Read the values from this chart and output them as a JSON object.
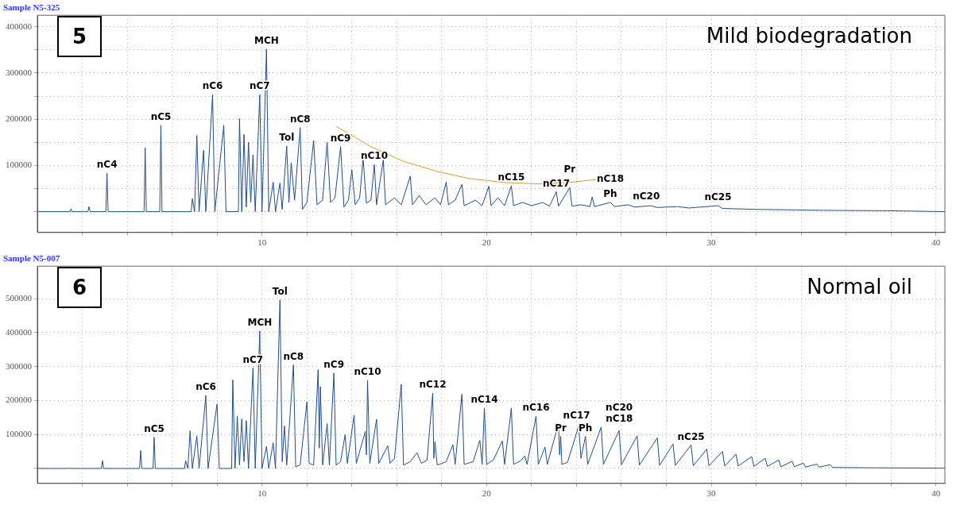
{
  "chart_data": [
    {
      "type": "line",
      "title": "Sample N5-325",
      "xlim": [
        0,
        40.4
      ],
      "ylim": [
        -45000,
        425000
      ],
      "xticks": [
        {
          "value": 2,
          "label": null
        },
        {
          "value": 4,
          "label": null
        },
        {
          "value": 6,
          "label": null
        },
        {
          "value": 8,
          "label": null
        },
        10,
        {
          "value": 12,
          "label": null
        },
        {
          "value": 14,
          "label": null
        },
        {
          "value": 16,
          "label": null
        },
        {
          "value": 18,
          "label": null
        },
        20,
        {
          "value": 22,
          "label": null
        },
        {
          "value": 24,
          "label": null
        },
        {
          "value": 26,
          "label": null
        },
        {
          "value": 28,
          "label": null
        },
        30,
        {
          "value": 32,
          "label": null
        },
        {
          "value": 34,
          "label": null
        },
        {
          "value": 36,
          "label": null
        },
        {
          "value": 38,
          "label": null
        },
        40
      ],
      "yticks": [
        {
          "value": 0,
          "label": null
        },
        {
          "value": 50000,
          "label": null
        },
        100000,
        {
          "value": 150000,
          "label": null
        },
        200000,
        {
          "value": 250000,
          "label": null
        },
        300000,
        {
          "value": 350000,
          "label": null
        },
        400000
      ],
      "grid": true,
      "legend": false,
      "marker": "none",
      "series": [
        {
          "color": "#1f4e8c",
          "x": [
            0,
            1.45,
            1.5,
            1.55,
            2.25,
            2.3,
            2.35,
            3.05,
            3.1,
            3.15,
            4.75,
            4.8,
            4.85,
            5.45,
            5.5,
            5.55,
            6.85,
            6.9,
            7.0,
            7.1,
            7.2,
            7.4,
            7.5,
            7.8,
            7.9,
            8.3,
            8.4,
            8.95,
            9.0,
            9.1,
            9.2,
            9.3,
            9.4,
            9.5,
            9.6,
            9.7,
            9.9,
            10.0,
            10.2,
            10.3,
            10.5,
            10.6,
            10.8,
            10.9,
            11.1,
            11.2,
            11.3,
            11.45,
            11.7,
            11.8,
            12.0,
            12.3,
            12.45,
            12.7,
            12.9,
            13.05,
            13.25,
            13.5,
            13.65,
            13.85,
            14.0,
            14.15,
            14.35,
            14.5,
            14.65,
            14.85,
            15.0,
            15.1,
            15.4,
            15.5,
            15.9,
            16.2,
            16.6,
            16.7,
            17.0,
            17.3,
            17.7,
            17.95,
            18.2,
            18.3,
            18.6,
            18.9,
            19.0,
            19.5,
            19.8,
            20.1,
            20.2,
            20.5,
            20.8,
            21.1,
            21.2,
            21.6,
            22.0,
            22.5,
            22.8,
            23.1,
            23.2,
            23.7,
            23.8,
            24.2,
            24.6,
            24.7,
            24.8,
            25.5,
            25.7,
            26.3,
            26.6,
            27.3,
            27.6,
            28.5,
            29.0,
            30.3,
            30.5,
            32,
            35,
            38,
            40.4
          ],
          "values": [
            0,
            0,
            6000,
            0,
            0,
            11000,
            0,
            0,
            83000,
            0,
            0,
            138000,
            0,
            0,
            187000,
            0,
            0,
            28000,
            0,
            165000,
            0,
            133000,
            0,
            253000,
            0,
            187000,
            0,
            0,
            202000,
            0,
            167000,
            10000,
            150000,
            20000,
            123000,
            0,
            253000,
            0,
            352000,
            0,
            64000,
            0,
            62000,
            5000,
            142000,
            20000,
            106000,
            25000,
            182000,
            5000,
            20000,
            154000,
            15000,
            25000,
            150000,
            20000,
            30000,
            141000,
            10000,
            25000,
            91000,
            15000,
            30000,
            115000,
            18000,
            25000,
            102000,
            15000,
            112000,
            15000,
            30000,
            15000,
            77000,
            15000,
            35000,
            15000,
            30000,
            15000,
            64000,
            15000,
            25000,
            59000,
            13000,
            25000,
            13000,
            55000,
            13000,
            30000,
            13000,
            56000,
            13000,
            20000,
            13000,
            20000,
            12000,
            43000,
            12000,
            52000,
            12000,
            15000,
            11000,
            32000,
            11000,
            20000,
            11000,
            15000,
            10000,
            13000,
            9000,
            11000,
            8000,
            13000,
            7000,
            5000,
            3000,
            2000,
            0
          ]
        },
        {
          "type": "line",
          "color": "#d4a020",
          "x": [
            13.3,
            14.8,
            16.3,
            17.8,
            19.2,
            20.8,
            22.3,
            23.6,
            25.0
          ],
          "values": [
            185000,
            142000,
            109000,
            87000,
            72000,
            63000,
            60000,
            63000,
            70000
          ]
        }
      ],
      "annotations": [
        "5",
        "Mild biodegradation",
        {
          "text": "nC4",
          "x": 3.1,
          "y": 83000
        },
        {
          "text": "nC5",
          "x": 5.5,
          "y": 187000
        },
        {
          "text": "nC6",
          "x": 7.8,
          "y": 253000
        },
        {
          "text": "nC7",
          "x": 9.9,
          "y": 253000
        },
        {
          "text": "MCH",
          "x": 10.2,
          "y": 352000
        },
        {
          "text": "Tol",
          "x": 11.1,
          "y": 142000
        },
        {
          "text": "nC8",
          "x": 11.7,
          "y": 182000
        },
        {
          "text": "nC9",
          "x": 13.5,
          "y": 141000
        },
        {
          "text": "nC10",
          "x": 15.0,
          "y": 102000
        },
        {
          "text": "nC15",
          "x": 21.1,
          "y": 56000
        },
        {
          "text": "nC17",
          "x": 23.1,
          "y": 43000
        },
        {
          "text": "Pr",
          "x": 23.7,
          "y": 52000
        },
        {
          "text": "Ph",
          "x": 25.5,
          "y": 20000
        },
        {
          "text": "nC18",
          "x": 24.7,
          "y": 32000
        },
        {
          "text": "nC20",
          "x": 26.3,
          "y": 15000
        },
        {
          "text": "nC25",
          "x": 30.3,
          "y": 13000
        }
      ]
    },
    {
      "type": "line",
      "title": "Sample N5-007",
      "xlim": [
        0,
        40.4
      ],
      "ylim": [
        -44000,
        596000
      ],
      "xticks": [
        {
          "value": 2,
          "label": null
        },
        {
          "value": 4,
          "label": null
        },
        {
          "value": 6,
          "label": null
        },
        {
          "value": 8,
          "label": null
        },
        10,
        {
          "value": 12,
          "label": null
        },
        {
          "value": 14,
          "label": null
        },
        {
          "value": 16,
          "label": null
        },
        {
          "value": 18,
          "label": null
        },
        20,
        {
          "value": 22,
          "label": null
        },
        {
          "value": 24,
          "label": null
        },
        {
          "value": 26,
          "label": null
        },
        {
          "value": 28,
          "label": null
        },
        30,
        {
          "value": 32,
          "label": null
        },
        {
          "value": 34,
          "label": null
        },
        {
          "value": 36,
          "label": null
        },
        {
          "value": 38,
          "label": null
        },
        40
      ],
      "yticks": [
        {
          "value": 0,
          "label": null
        },
        100000,
        200000,
        300000,
        400000,
        500000
      ],
      "grid": true,
      "legend": false,
      "marker": "none",
      "series": [
        {
          "color": "#1f4e8c",
          "x": [
            0,
            1.35,
            1.4,
            1.45,
            2.85,
            2.9,
            2.95,
            4.55,
            4.6,
            4.65,
            5.15,
            5.2,
            5.25,
            6.55,
            6.6,
            6.7,
            6.8,
            6.9,
            7.1,
            7.2,
            7.5,
            7.6,
            8.0,
            8.1,
            8.65,
            8.7,
            8.8,
            8.9,
            9.0,
            9.1,
            9.2,
            9.3,
            9.4,
            9.6,
            9.7,
            9.9,
            10.0,
            10.2,
            10.3,
            10.5,
            10.6,
            10.8,
            10.9,
            11.0,
            11.1,
            11.4,
            11.5,
            11.7,
            12.0,
            12.1,
            12.3,
            12.5,
            12.55,
            12.6,
            12.7,
            12.9,
            13.0,
            13.2,
            13.3,
            13.5,
            13.7,
            13.8,
            14.1,
            14.2,
            14.6,
            14.65,
            14.7,
            14.8,
            15.1,
            15.2,
            15.6,
            15.7,
            15.9,
            16.2,
            16.3,
            16.6,
            16.9,
            17.1,
            17.35,
            17.6,
            17.65,
            17.7,
            17.8,
            18.2,
            18.5,
            18.6,
            18.9,
            19.0,
            19.4,
            19.7,
            19.8,
            19.9,
            20.0,
            20.3,
            20.7,
            20.8,
            21.1,
            21.2,
            21.5,
            21.7,
            21.8,
            22.2,
            22.3,
            22.6,
            22.7,
            23.2,
            23.25,
            23.3,
            23.35,
            23.6,
            24.1,
            24.2,
            24.4,
            24.5,
            25.1,
            25.2,
            25.9,
            26.0,
            26.7,
            26.8,
            27.6,
            27.7,
            28.3,
            28.4,
            29.1,
            29.2,
            29.8,
            29.9,
            30.5,
            30.6,
            31.1,
            31.2,
            31.8,
            31.9,
            32.4,
            32.5,
            33.0,
            33.1,
            33.6,
            33.7,
            34.1,
            34.2,
            34.7,
            34.8,
            35.3,
            35.4,
            37,
            40.4
          ],
          "values": [
            0,
            0,
            1000,
            0,
            0,
            23000,
            0,
            0,
            53000,
            0,
            0,
            92000,
            0,
            0,
            23000,
            0,
            111000,
            0,
            96000,
            0,
            215000,
            0,
            190000,
            0,
            0,
            261000,
            0,
            154000,
            10000,
            146000,
            20000,
            141000,
            0,
            296000,
            0,
            405000,
            0,
            65000,
            0,
            76000,
            0,
            497000,
            20000,
            125000,
            10000,
            305000,
            5000,
            10000,
            196000,
            15000,
            10000,
            291000,
            60000,
            241000,
            10000,
            132000,
            10000,
            281000,
            10000,
            20000,
            99000,
            15000,
            157000,
            15000,
            109000,
            40000,
            259000,
            15000,
            145000,
            15000,
            67000,
            15000,
            30000,
            248000,
            10000,
            20000,
            46000,
            15000,
            25000,
            222000,
            30000,
            79000,
            10000,
            20000,
            70000,
            12000,
            219000,
            12000,
            20000,
            83000,
            12000,
            178000,
            12000,
            25000,
            81000,
            12000,
            178000,
            12000,
            22000,
            37000,
            12000,
            154000,
            12000,
            63000,
            12000,
            132000,
            40000,
            95000,
            12000,
            18000,
            125000,
            30000,
            95000,
            12000,
            122000,
            12000,
            112000,
            11000,
            96000,
            10000,
            90000,
            9000,
            72000,
            9000,
            69000,
            8000,
            57000,
            8000,
            50000,
            7000,
            42000,
            7000,
            35000,
            6000,
            30000,
            6000,
            25000,
            5000,
            21000,
            5000,
            16000,
            4000,
            13000,
            4000,
            11000,
            3000,
            2000,
            1000
          ]
        }
      ],
      "annotations": [
        "6",
        "Normal oil",
        {
          "text": "nC5",
          "x": 5.2,
          "y": 92000
        },
        {
          "text": "nC6",
          "x": 7.5,
          "y": 215000
        },
        {
          "text": "nC7",
          "x": 9.6,
          "y": 296000
        },
        {
          "text": "MCH",
          "x": 9.9,
          "y": 405000
        },
        {
          "text": "Tol",
          "x": 10.8,
          "y": 497000
        },
        {
          "text": "nC8",
          "x": 11.4,
          "y": 305000
        },
        {
          "text": "nC9",
          "x": 13.2,
          "y": 281000
        },
        {
          "text": "nC10",
          "x": 14.7,
          "y": 259000
        },
        {
          "text": "nC12",
          "x": 17.6,
          "y": 222000
        },
        {
          "text": "nC14",
          "x": 19.9,
          "y": 178000
        },
        {
          "text": "nC16",
          "x": 22.2,
          "y": 154000
        },
        {
          "text": "nC17",
          "x": 23.2,
          "y": 132000
        },
        {
          "text": "Pr",
          "x": 23.3,
          "y": 95000
        },
        {
          "text": "Ph",
          "x": 24.4,
          "y": 95000
        },
        {
          "text": "nC18",
          "x": 25.1,
          "y": 122000
        },
        {
          "text": "nC20",
          "x": 25.9,
          "y": 112000
        },
        {
          "text": "nC25",
          "x": 29.1,
          "y": 69000
        }
      ]
    }
  ]
}
